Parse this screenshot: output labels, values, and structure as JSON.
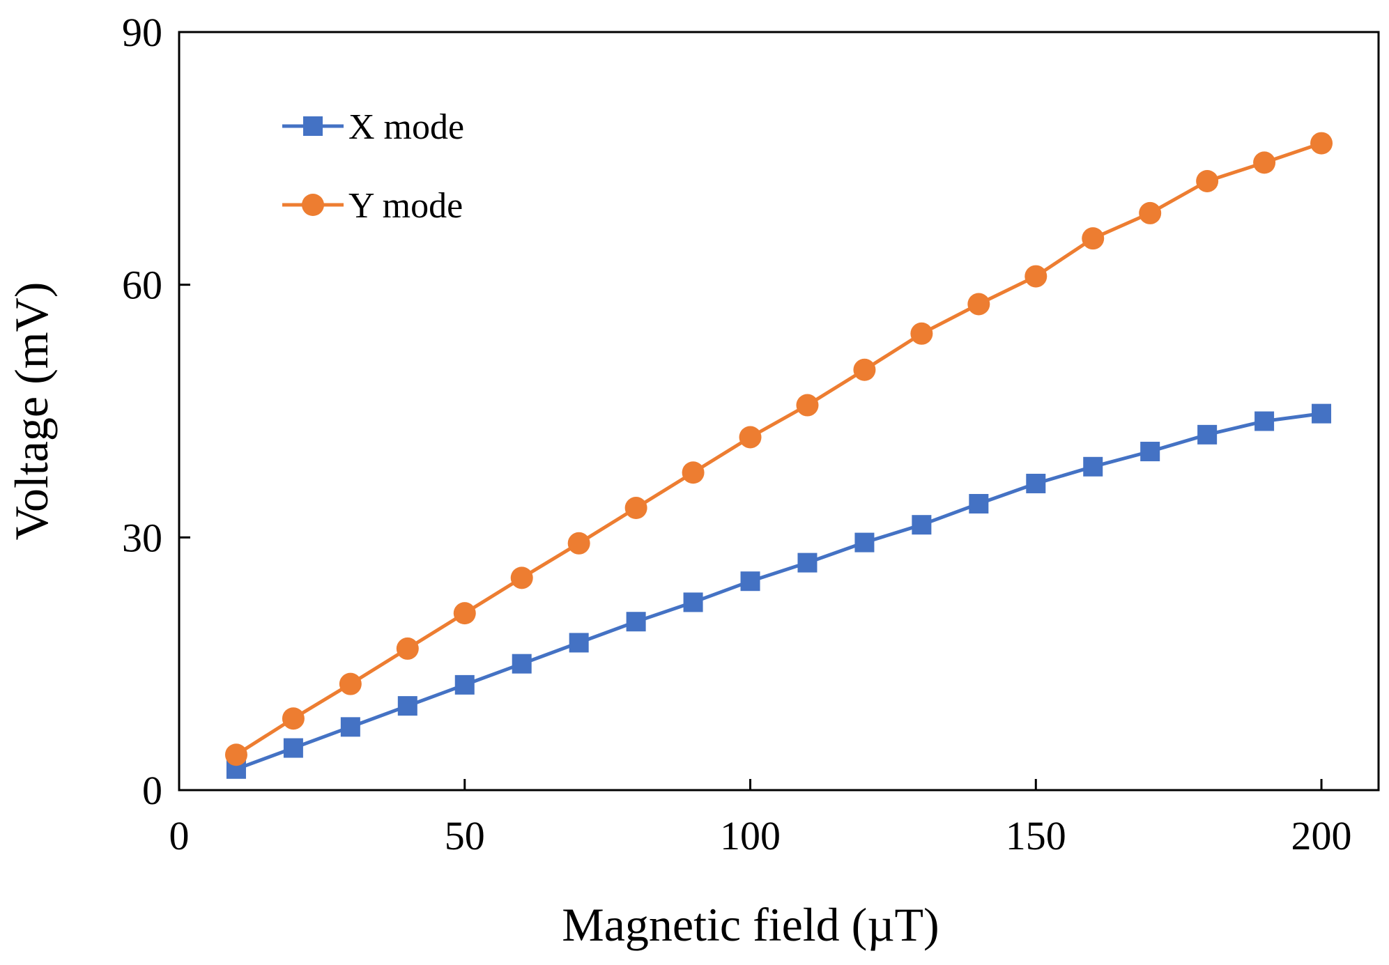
{
  "chart_data": {
    "type": "line",
    "title": "",
    "xlabel": "Magnetic field (µT)",
    "ylabel": "Voltage (mV)",
    "xlim": [
      0,
      210
    ],
    "ylim": [
      0,
      90
    ],
    "xticks": [
      0,
      50,
      100,
      150,
      200
    ],
    "yticks": [
      0,
      30,
      60,
      90
    ],
    "grid": false,
    "legend_position": "top-left",
    "x": [
      10,
      20,
      30,
      40,
      50,
      60,
      70,
      80,
      90,
      100,
      110,
      120,
      130,
      140,
      150,
      160,
      170,
      180,
      190,
      200
    ],
    "series": [
      {
        "name": "X mode",
        "color": "#4472C4",
        "marker": "square",
        "values": [
          2.5,
          5,
          7.5,
          10,
          12.5,
          15,
          17.5,
          20,
          22.3,
          24.8,
          27,
          29.4,
          31.5,
          34,
          36.4,
          38.4,
          40.2,
          42.2,
          43.8,
          44.7
        ]
      },
      {
        "name": "Y mode",
        "color": "#ED7D31",
        "marker": "circle",
        "values": [
          4.2,
          8.5,
          12.6,
          16.8,
          21,
          25.2,
          29.3,
          33.5,
          37.7,
          41.9,
          45.7,
          49.9,
          54.2,
          57.7,
          61,
          65.5,
          68.5,
          72.3,
          74.5,
          76.8
        ]
      }
    ]
  }
}
